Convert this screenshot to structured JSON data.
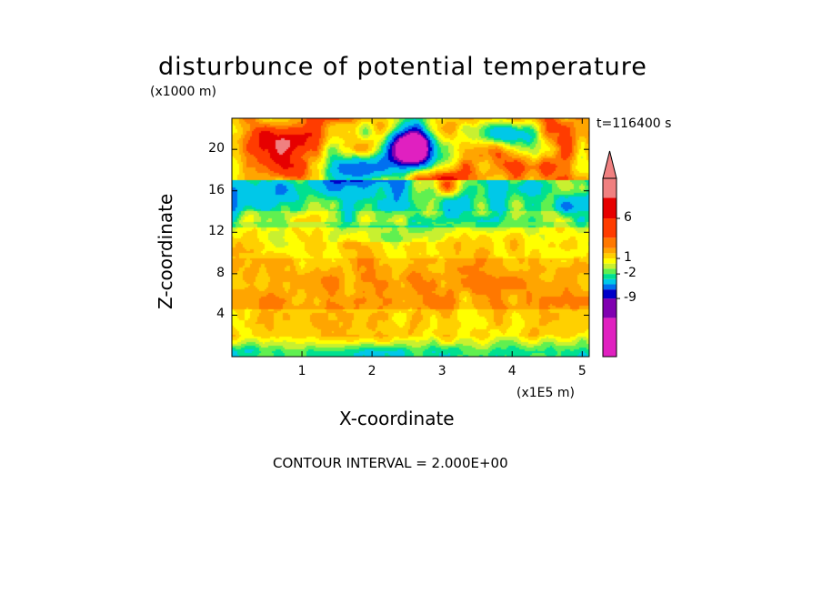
{
  "chart_data": {
    "type": "heatmap",
    "title": "disturbunce of potential temperature",
    "y_unit_label": "(x1000 m)",
    "x_unit_label": "(x1E5 m)",
    "xlabel": "X-coordinate",
    "ylabel": "Z-coordinate",
    "time_label": "t=116400 s",
    "contour_interval_label": "CONTOUR INTERVAL = 2.000E+00",
    "xlim": [
      0,
      5.1
    ],
    "ylim": [
      0,
      23
    ],
    "x_ticks": [
      "1",
      "2",
      "3",
      "4",
      "5"
    ],
    "y_ticks": [
      "4",
      "8",
      "12",
      "16",
      "20"
    ],
    "colorbar": {
      "tick_labels": [
        {
          "label": "6",
          "value": 6
        },
        {
          "label": "1",
          "value": 1
        },
        {
          "label": "-2",
          "value": -2
        },
        {
          "label": "-9",
          "value": -9
        }
      ],
      "levels": [
        -13,
        -11,
        -9,
        -7,
        -5,
        -3,
        -2,
        -1,
        0,
        1,
        2,
        3,
        4,
        6,
        8,
        10
      ],
      "colors": [
        "#e020c0",
        "#8000b0",
        "#0000c8",
        "#0070f0",
        "#00c8e8",
        "#00e090",
        "#60f050",
        "#c8f030",
        "#ffff00",
        "#ffd000",
        "#ffa500",
        "#ff7800",
        "#ff3c00",
        "#e60000",
        "#f08080"
      ]
    },
    "features": [
      {
        "x": 2.6,
        "z": 20.2,
        "value": -12,
        "sx": 0.28,
        "sz": 1.8
      },
      {
        "x": 2.5,
        "z": 19.5,
        "value": -6,
        "sx": 0.45,
        "sz": 2.4
      },
      {
        "x": 3.9,
        "z": 21.5,
        "value": -6,
        "sx": 0.4,
        "sz": 1.2
      },
      {
        "x": 0.5,
        "z": 15.2,
        "value": -5,
        "sx": 0.55,
        "sz": 1.2
      },
      {
        "x": 1.7,
        "z": 18.0,
        "value": -4,
        "sx": 0.35,
        "sz": 1.5
      },
      {
        "x": 0.9,
        "z": 20.6,
        "value": 7,
        "sx": 0.3,
        "sz": 1.4
      },
      {
        "x": 0.4,
        "z": 20.3,
        "value": 6,
        "sx": 0.3,
        "sz": 1.8
      },
      {
        "x": 2.9,
        "z": 16.8,
        "value": 4,
        "sx": 0.35,
        "sz": 1.2
      },
      {
        "x": 3.5,
        "z": 18.0,
        "value": 4,
        "sx": 0.3,
        "sz": 1.0
      },
      {
        "x": 1.5,
        "z": 5.0,
        "value": 3,
        "sx": 0.9,
        "sz": 2.0
      },
      {
        "x": 4.0,
        "z": 4.5,
        "value": 3,
        "sx": 0.6,
        "sz": 2.0
      }
    ]
  }
}
